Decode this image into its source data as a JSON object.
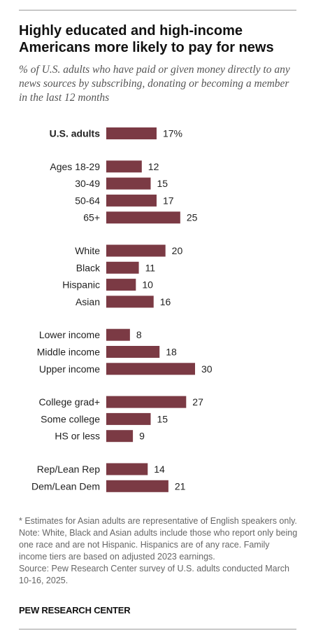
{
  "title": "Highly educated and high-income Americans more likely to pay for news",
  "subtitle": "% of U.S. adults who have paid or given money directly to any news sources by subscribing, donating or becoming a member in the last 12 months",
  "notes": [
    "* Estimates for Asian adults are representative of English speakers only.",
    "Note: White, Black and Asian adults include those who report only being one race and are not Hispanic. Hispanics are of any race. Family income tiers are based on adjusted 2023 earnings.",
    "Source: Pew Research Center survey of U.S. adults conducted March 10-16, 2025."
  ],
  "brand": "PEW RESEARCH CENTER",
  "colors": {
    "bar": "#7b3a44",
    "label": "#222222",
    "value": "#222222"
  },
  "chart_data": {
    "type": "bar",
    "orientation": "horizontal",
    "unit": "%",
    "xlim": [
      0,
      30
    ],
    "grid": false,
    "groups": [
      {
        "rows": [
          {
            "label": "U.S. adults",
            "value": 17,
            "value_label": "17%",
            "bold": true
          }
        ]
      },
      {
        "rows": [
          {
            "label": "Ages 18-29",
            "value": 12,
            "value_label": "12"
          },
          {
            "label": "30-49",
            "value": 15,
            "value_label": "15"
          },
          {
            "label": "50-64",
            "value": 17,
            "value_label": "17"
          },
          {
            "label": "65+",
            "value": 25,
            "value_label": "25"
          }
        ]
      },
      {
        "rows": [
          {
            "label": "White",
            "value": 20,
            "value_label": "20"
          },
          {
            "label": "Black",
            "value": 11,
            "value_label": "11"
          },
          {
            "label": "Hispanic",
            "value": 10,
            "value_label": "10"
          },
          {
            "label": "Asian",
            "value": 16,
            "value_label": "16"
          }
        ]
      },
      {
        "rows": [
          {
            "label": "Lower income",
            "value": 8,
            "value_label": "8"
          },
          {
            "label": "Middle income",
            "value": 18,
            "value_label": "18"
          },
          {
            "label": "Upper income",
            "value": 30,
            "value_label": "30"
          }
        ]
      },
      {
        "rows": [
          {
            "label": "College grad+",
            "value": 27,
            "value_label": "27"
          },
          {
            "label": "Some college",
            "value": 15,
            "value_label": "15"
          },
          {
            "label": "HS or less",
            "value": 9,
            "value_label": "9"
          }
        ]
      },
      {
        "rows": [
          {
            "label": "Rep/Lean Rep",
            "value": 14,
            "value_label": "14"
          },
          {
            "label": "Dem/Lean Dem",
            "value": 21,
            "value_label": "21"
          }
        ]
      }
    ]
  }
}
